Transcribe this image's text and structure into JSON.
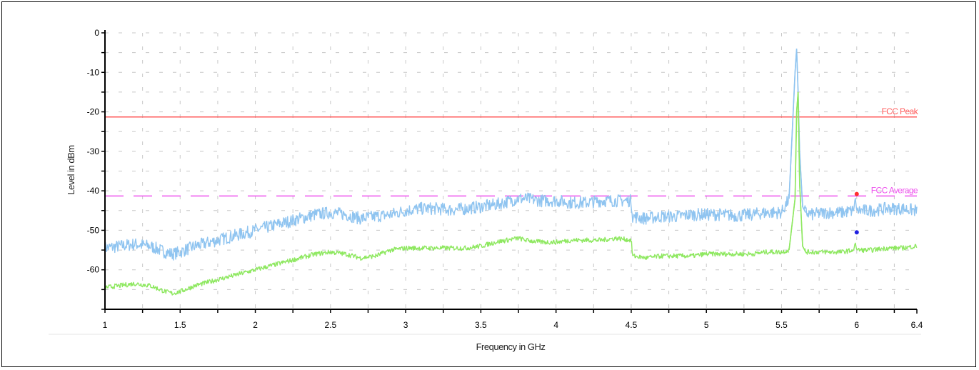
{
  "chart_data": {
    "type": "line",
    "xlabel": "Frequency in GHz",
    "ylabel": "Level in dBm",
    "xlim": [
      1,
      6.4
    ],
    "ylim": [
      -70,
      0
    ],
    "x_ticks": [
      "1",
      "1.5",
      "2",
      "2.5",
      "3",
      "3.5",
      "4",
      "4.5",
      "5",
      "5.5",
      "6",
      "6.4"
    ],
    "y_ticks": [
      "0",
      "-10",
      "-20",
      "-30",
      "-40",
      "-50",
      "-60"
    ],
    "grid": true,
    "limit_lines": [
      {
        "name": "FCC Peak",
        "value": -21.3,
        "color": "#ff5a5a",
        "style": "solid"
      },
      {
        "name": "FCC Average",
        "value": -41.3,
        "color": "#ee55ee",
        "style": "dashed"
      }
    ],
    "series": [
      {
        "color": "#8fc4f0",
        "x": [
          1.0,
          1.1,
          1.2,
          1.3,
          1.4,
          1.45,
          1.5,
          1.6,
          1.7,
          1.8,
          1.9,
          2.0,
          2.1,
          2.2,
          2.3,
          2.4,
          2.5,
          2.6,
          2.7,
          2.8,
          2.9,
          3.0,
          3.1,
          3.2,
          3.3,
          3.4,
          3.5,
          3.6,
          3.7,
          3.75,
          3.8,
          3.9,
          4.0,
          4.1,
          4.2,
          4.3,
          4.4,
          4.5,
          4.51,
          4.6,
          4.7,
          4.8,
          4.9,
          5.0,
          5.1,
          5.2,
          5.3,
          5.4,
          5.5,
          5.55,
          5.59,
          5.6,
          5.61,
          5.62,
          5.64,
          5.66,
          5.7,
          5.8,
          5.9,
          5.98,
          5.99,
          6.0,
          6.1,
          6.2,
          6.3,
          6.4
        ],
        "y": [
          -54.5,
          -54,
          -53.5,
          -54,
          -55.5,
          -56,
          -55.5,
          -54,
          -53,
          -52,
          -51,
          -50,
          -49,
          -48,
          -47,
          -46,
          -45.5,
          -46,
          -47,
          -46.5,
          -46,
          -45,
          -44.5,
          -44.5,
          -44.8,
          -44.5,
          -44,
          -43.5,
          -42.5,
          -42,
          -42,
          -42.5,
          -42.5,
          -43,
          -43,
          -42.5,
          -42.5,
          -42.5,
          -46.5,
          -47,
          -46.5,
          -46.5,
          -46,
          -46,
          -46,
          -46.3,
          -46,
          -45.5,
          -45.5,
          -42,
          -10,
          -4,
          -15,
          -30,
          -44,
          -45.5,
          -46,
          -45.5,
          -45.5,
          -45,
          -41.5,
          -45,
          -45,
          -44.5,
          -44.5,
          -45
        ]
      },
      {
        "color": "#8ee860",
        "x": [
          1.0,
          1.1,
          1.2,
          1.3,
          1.4,
          1.45,
          1.5,
          1.6,
          1.7,
          1.8,
          1.9,
          2.0,
          2.1,
          2.2,
          2.3,
          2.4,
          2.5,
          2.6,
          2.7,
          2.8,
          2.9,
          3.0,
          3.1,
          3.2,
          3.3,
          3.4,
          3.5,
          3.6,
          3.7,
          3.75,
          3.8,
          3.9,
          4.0,
          4.1,
          4.2,
          4.3,
          4.4,
          4.5,
          4.51,
          4.6,
          4.7,
          4.8,
          4.9,
          5.0,
          5.1,
          5.2,
          5.3,
          5.4,
          5.5,
          5.55,
          5.59,
          5.6,
          5.61,
          5.62,
          5.64,
          5.66,
          5.7,
          5.8,
          5.9,
          5.98,
          5.99,
          6.0,
          6.1,
          6.2,
          6.3,
          6.4
        ],
        "y": [
          -64.5,
          -64,
          -63.5,
          -64,
          -65.5,
          -66,
          -65.5,
          -64,
          -63,
          -62,
          -61,
          -60,
          -59,
          -58,
          -57,
          -56,
          -55.5,
          -56,
          -57,
          -56.5,
          -55,
          -54.5,
          -54.5,
          -54.5,
          -54.5,
          -54.5,
          -54,
          -53,
          -52.3,
          -52,
          -52.5,
          -53,
          -53,
          -52.5,
          -52.5,
          -52.5,
          -52,
          -52.5,
          -56.5,
          -57,
          -56.5,
          -56.5,
          -56.5,
          -56,
          -56,
          -56,
          -56,
          -55.5,
          -55.5,
          -55,
          -42,
          -20,
          -15,
          -38,
          -54,
          -55.5,
          -55.5,
          -55.5,
          -55.5,
          -55,
          -53,
          -55,
          -55,
          -54.5,
          -54.5,
          -54
        ]
      }
    ],
    "markers": [
      {
        "x": 6.0,
        "y": -40.8,
        "color": "#ff3030"
      },
      {
        "x": 6.0,
        "y": -50.5,
        "color": "#2020e0"
      }
    ]
  }
}
